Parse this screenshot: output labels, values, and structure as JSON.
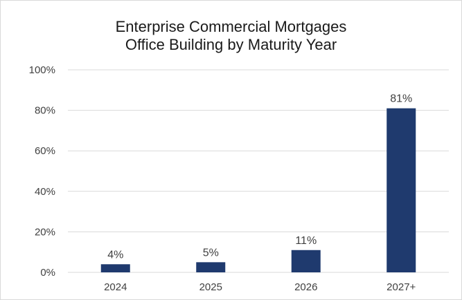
{
  "chart_data": {
    "type": "bar",
    "title_lines": [
      "Enterprise Commercial Mortgages",
      "Office Building by Maturity Year"
    ],
    "categories": [
      "2024",
      "2025",
      "2026",
      "2027+"
    ],
    "values": [
      4,
      5,
      11,
      81
    ],
    "data_labels": [
      "4%",
      "5%",
      "11%",
      "81%"
    ],
    "ylim": [
      0,
      100
    ],
    "yticks": [
      0,
      20,
      40,
      60,
      80,
      100
    ],
    "ytick_labels": [
      "0%",
      "20%",
      "40%",
      "60%",
      "80%",
      "100%"
    ],
    "xlabel": "",
    "ylabel": "",
    "grid": true,
    "legend": "none",
    "bar_color": "#1f3a6e",
    "grid_color": "#d9d9d9"
  }
}
